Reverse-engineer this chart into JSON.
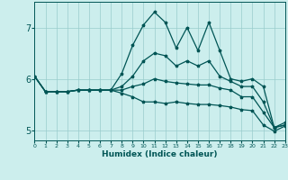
{
  "xlabel": "Humidex (Indice chaleur)",
  "background_color": "#cceeed",
  "grid_color": "#99cccc",
  "line_color": "#005555",
  "x": [
    0,
    1,
    2,
    3,
    4,
    5,
    6,
    7,
    8,
    9,
    10,
    11,
    12,
    13,
    14,
    15,
    16,
    17,
    18,
    19,
    20,
    21,
    22,
    23
  ],
  "line1": [
    6.05,
    5.75,
    5.75,
    5.75,
    5.78,
    5.78,
    5.78,
    5.78,
    6.1,
    6.65,
    7.05,
    7.3,
    7.1,
    6.6,
    7.0,
    6.55,
    7.1,
    6.55,
    6.0,
    5.95,
    6.0,
    5.85,
    5.05,
    5.15
  ],
  "line2": [
    6.05,
    5.75,
    5.75,
    5.75,
    5.78,
    5.78,
    5.78,
    5.78,
    5.85,
    6.05,
    6.35,
    6.5,
    6.45,
    6.25,
    6.35,
    6.25,
    6.35,
    6.05,
    5.95,
    5.85,
    5.85,
    5.55,
    5.05,
    5.1
  ],
  "line3": [
    6.05,
    5.75,
    5.75,
    5.75,
    5.78,
    5.78,
    5.78,
    5.78,
    5.78,
    5.85,
    5.9,
    6.0,
    5.95,
    5.92,
    5.9,
    5.88,
    5.88,
    5.82,
    5.78,
    5.65,
    5.65,
    5.35,
    5.05,
    5.1
  ],
  "line4": [
    6.05,
    5.75,
    5.75,
    5.75,
    5.78,
    5.78,
    5.78,
    5.78,
    5.72,
    5.65,
    5.55,
    5.55,
    5.52,
    5.55,
    5.52,
    5.5,
    5.5,
    5.48,
    5.45,
    5.4,
    5.38,
    5.1,
    4.98,
    5.08
  ],
  "xlim": [
    0,
    23
  ],
  "ylim": [
    4.8,
    7.5
  ],
  "yticks": [
    5,
    6,
    7
  ],
  "xticks": [
    0,
    1,
    2,
    3,
    4,
    5,
    6,
    7,
    8,
    9,
    10,
    11,
    12,
    13,
    14,
    15,
    16,
    17,
    18,
    19,
    20,
    21,
    22,
    23
  ]
}
